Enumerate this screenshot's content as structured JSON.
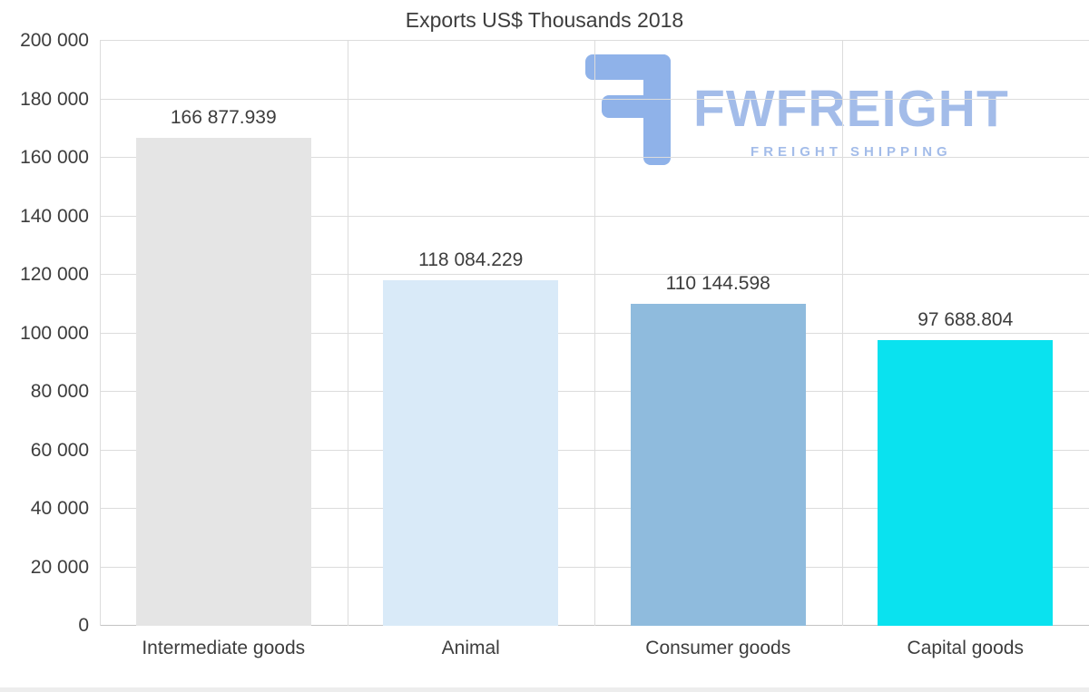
{
  "watermark": {
    "brand": "FWFREIGHT",
    "tagline": "FREIGHT SHIPPING",
    "color": "#a3bce9"
  },
  "chart_data": {
    "type": "bar",
    "title": "Exports US$ Thousands 2018",
    "categories": [
      "Intermediate goods",
      "Animal",
      "Consumer goods",
      "Capital goods"
    ],
    "values": [
      166877.939,
      118084.229,
      110144.598,
      97688.804
    ],
    "value_labels": [
      "166 877.939",
      "118 084.229",
      "110 144.598",
      "97 688.804"
    ],
    "bar_colors": [
      "#e5e5e5",
      "#d9eaf8",
      "#8fbbdd",
      "#0ae2ef"
    ],
    "xlabel": "",
    "ylabel": "",
    "ylim": [
      0,
      200000
    ],
    "ytick_step": 20000,
    "ytick_labels": [
      "0",
      "20 000",
      "40 000",
      "60 000",
      "80 000",
      "100 000",
      "120 000",
      "140 000",
      "160 000",
      "180 000",
      "200 000"
    ],
    "grid": true,
    "legend": "none"
  }
}
